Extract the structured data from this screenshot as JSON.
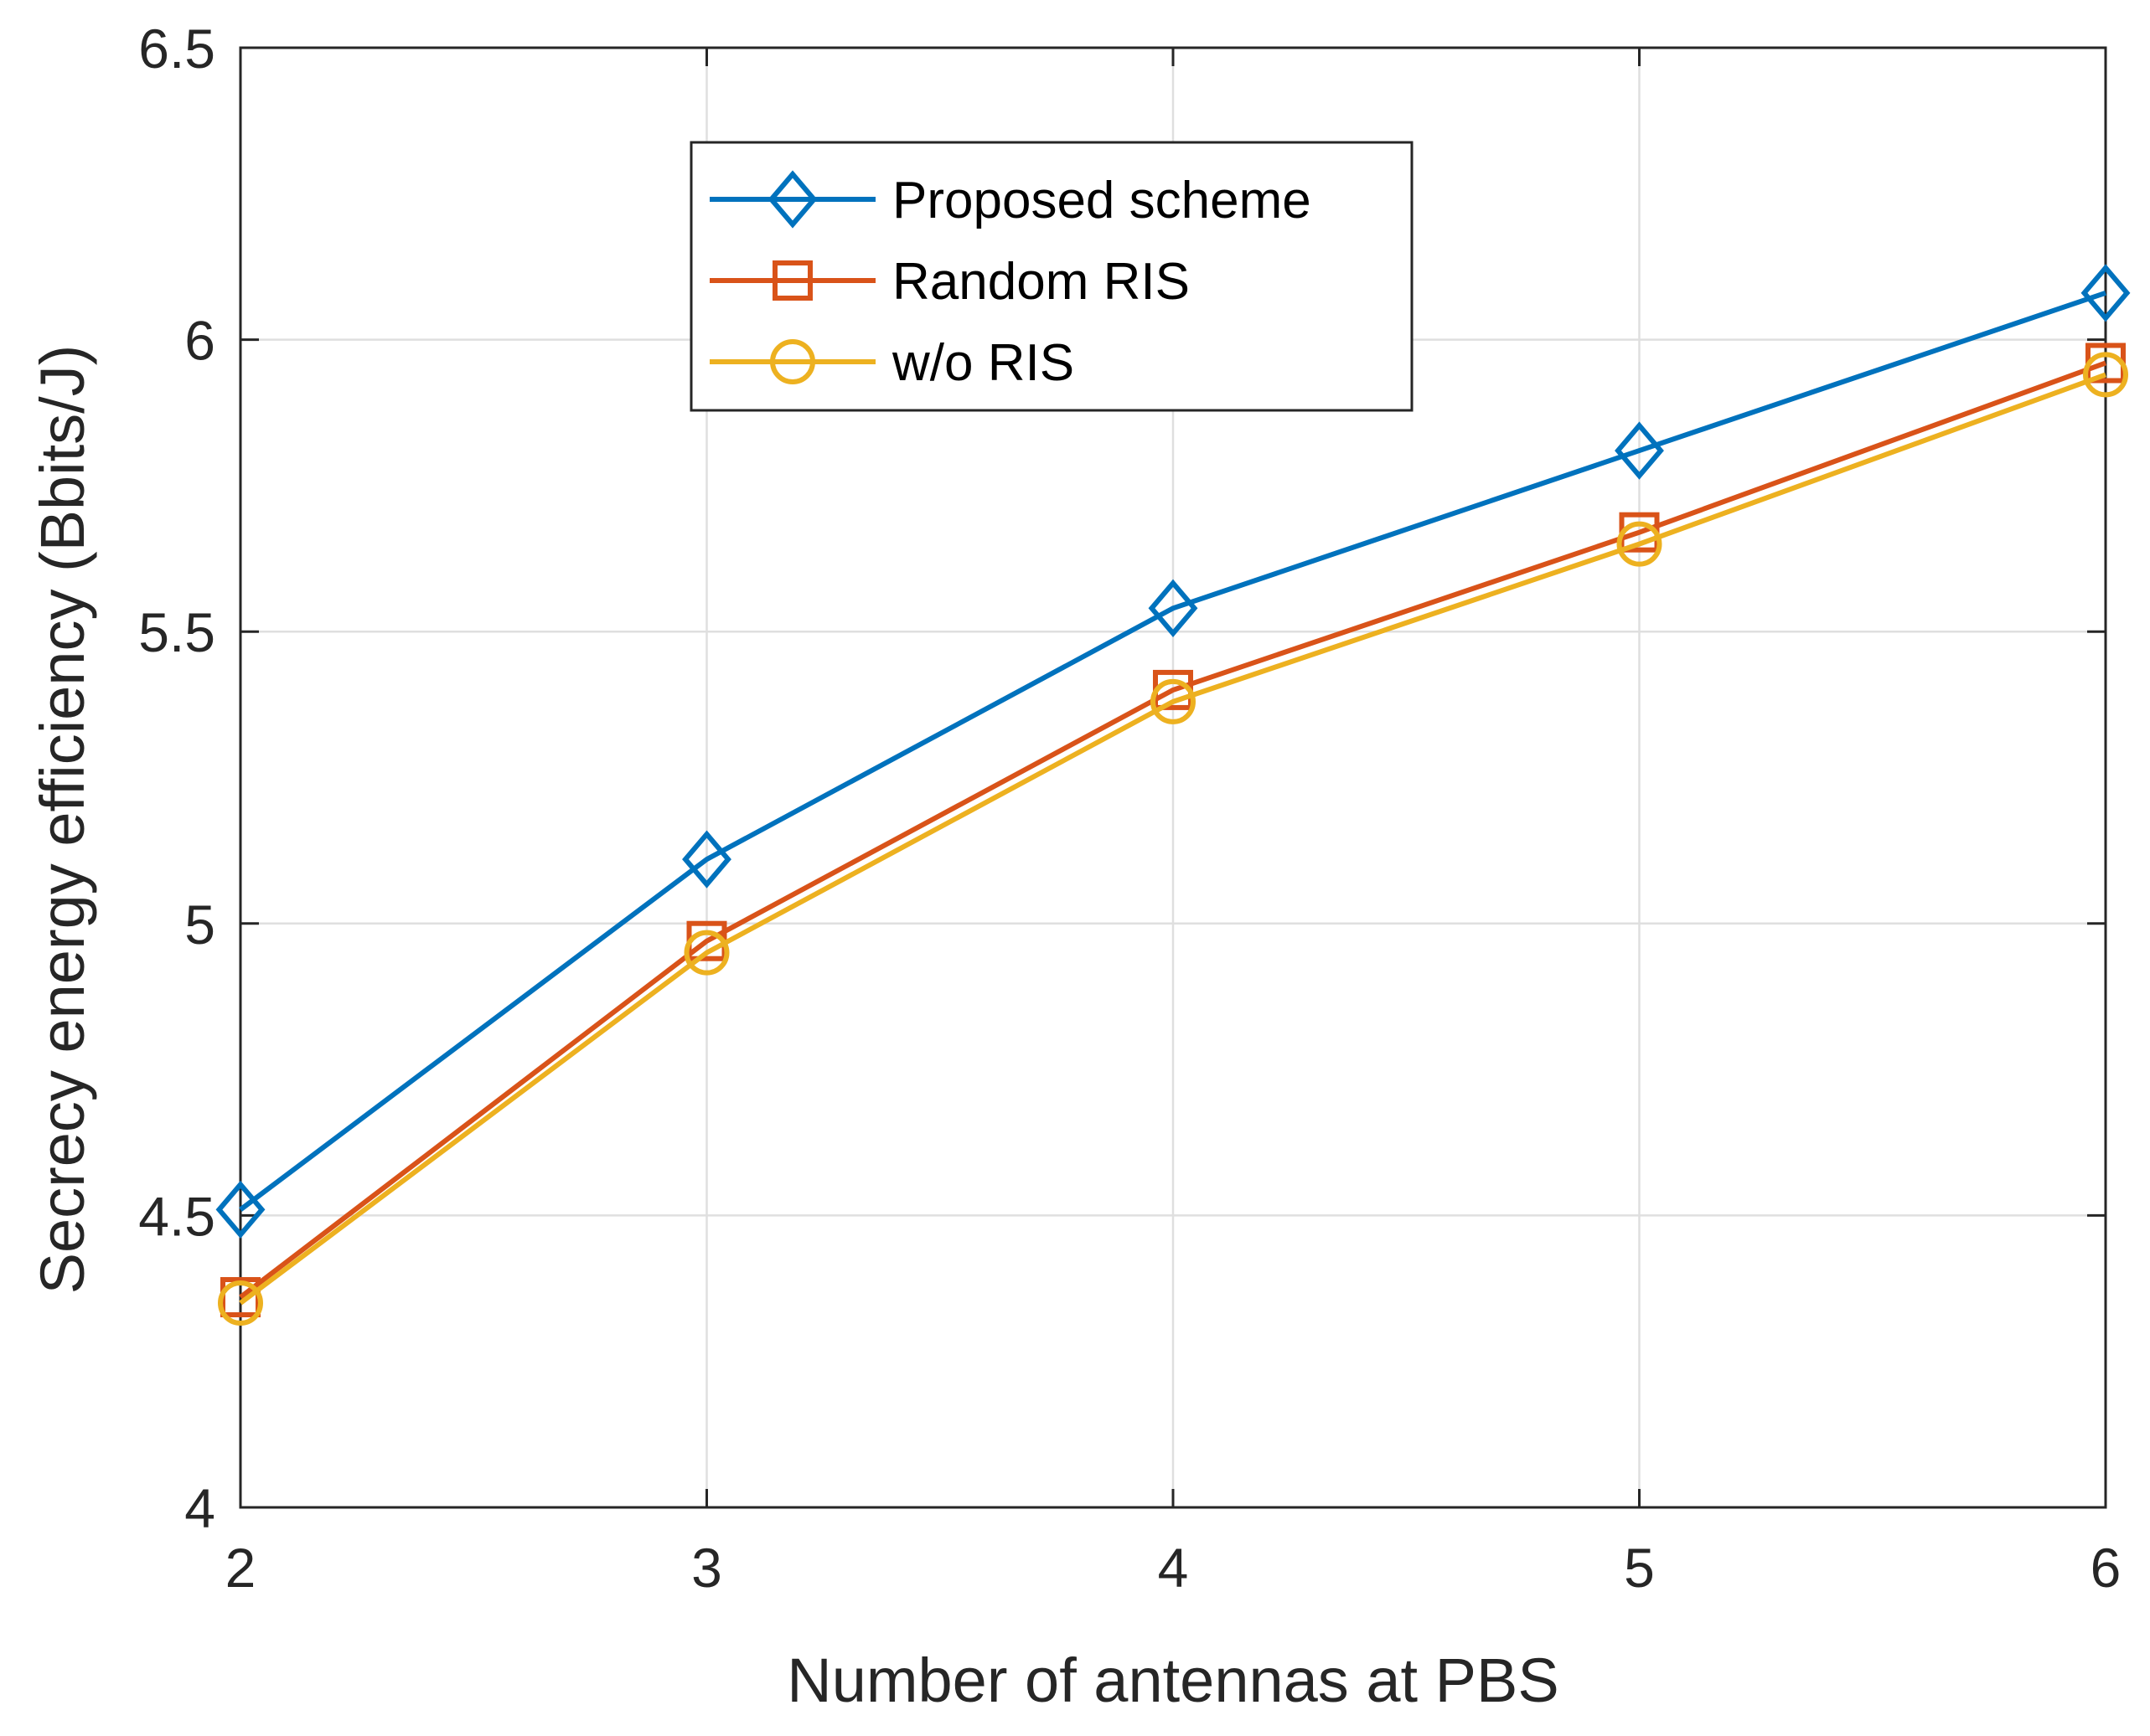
{
  "chart_data": {
    "type": "line",
    "title": "",
    "xlabel": "Number of antennas at PBS",
    "ylabel": "Secrecy energy efficiency (Bbits/J)",
    "x": [
      2,
      3,
      4,
      5,
      6
    ],
    "xlim": [
      2,
      6
    ],
    "ylim": [
      4,
      6.5
    ],
    "xticks": [
      2,
      3,
      4,
      5,
      6
    ],
    "yticks": [
      4,
      4.5,
      5,
      5.5,
      6,
      6.5
    ],
    "xtick_labels": [
      "2",
      "3",
      "4",
      "5",
      "6"
    ],
    "ytick_labels": [
      "4",
      "4.5",
      "5",
      "5.5",
      "6",
      "6.5"
    ],
    "grid": true,
    "legend_position": "top-center",
    "series": [
      {
        "name": "Proposed scheme",
        "values": [
          4.51,
          5.11,
          5.54,
          5.81,
          6.08
        ],
        "color": "#0072BD",
        "marker": "diamond"
      },
      {
        "name": "Random RIS",
        "values": [
          4.36,
          4.97,
          5.4,
          5.67,
          5.96
        ],
        "color": "#D95319",
        "marker": "square"
      },
      {
        "name": "w/o RIS",
        "values": [
          4.35,
          4.95,
          5.38,
          5.65,
          5.94
        ],
        "color": "#EDB120",
        "marker": "circle"
      }
    ]
  }
}
